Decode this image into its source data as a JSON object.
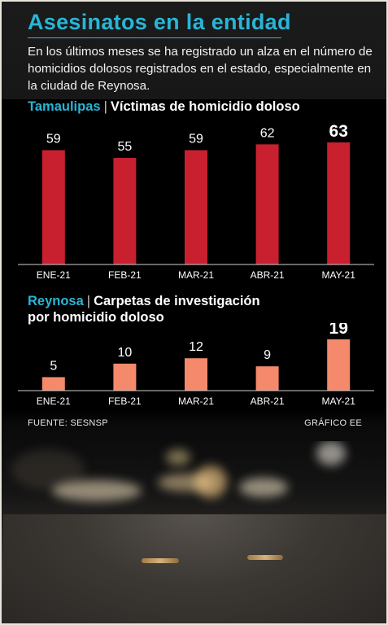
{
  "title": "Asesinatos en la entidad",
  "intro": "En los últimos meses se ha registrado un alza en el número de homicidios dolosos registrados en el estado, especialmente en la ciudad de Reynosa.",
  "section1": {
    "place": "Tamaulipas",
    "separator": "|",
    "subtitle": "Víctimas de homicidio doloso"
  },
  "section2": {
    "place": "Reynosa",
    "separator": "|",
    "subtitle_line1": "Carpetas de investigación",
    "subtitle_line2": "por homicidio doloso"
  },
  "source": "FUENTE: SESNSP",
  "credit": "GRÁFICO EE",
  "colors": {
    "accent": "#29b5d6",
    "bar_tamaulipas": "#c8202f",
    "bar_reynosa": "#f4896b"
  },
  "chart_data": [
    {
      "type": "bar",
      "title": "Víctimas de homicidio doloso",
      "region": "Tamaulipas",
      "categories": [
        "ENE-21",
        "FEB-21",
        "MAR-21",
        "ABR-21",
        "MAY-21"
      ],
      "values": [
        59,
        55,
        59,
        62,
        63
      ],
      "highlight_last": true,
      "grid": false
    },
    {
      "type": "bar",
      "title": "Carpetas de investigación por homicidio doloso",
      "region": "Reynosa",
      "categories": [
        "ENE-21",
        "FEB-21",
        "MAR-21",
        "ABR-21",
        "MAY-21"
      ],
      "values": [
        5,
        10,
        12,
        9,
        19
      ],
      "highlight_last": true,
      "grid": false
    }
  ]
}
